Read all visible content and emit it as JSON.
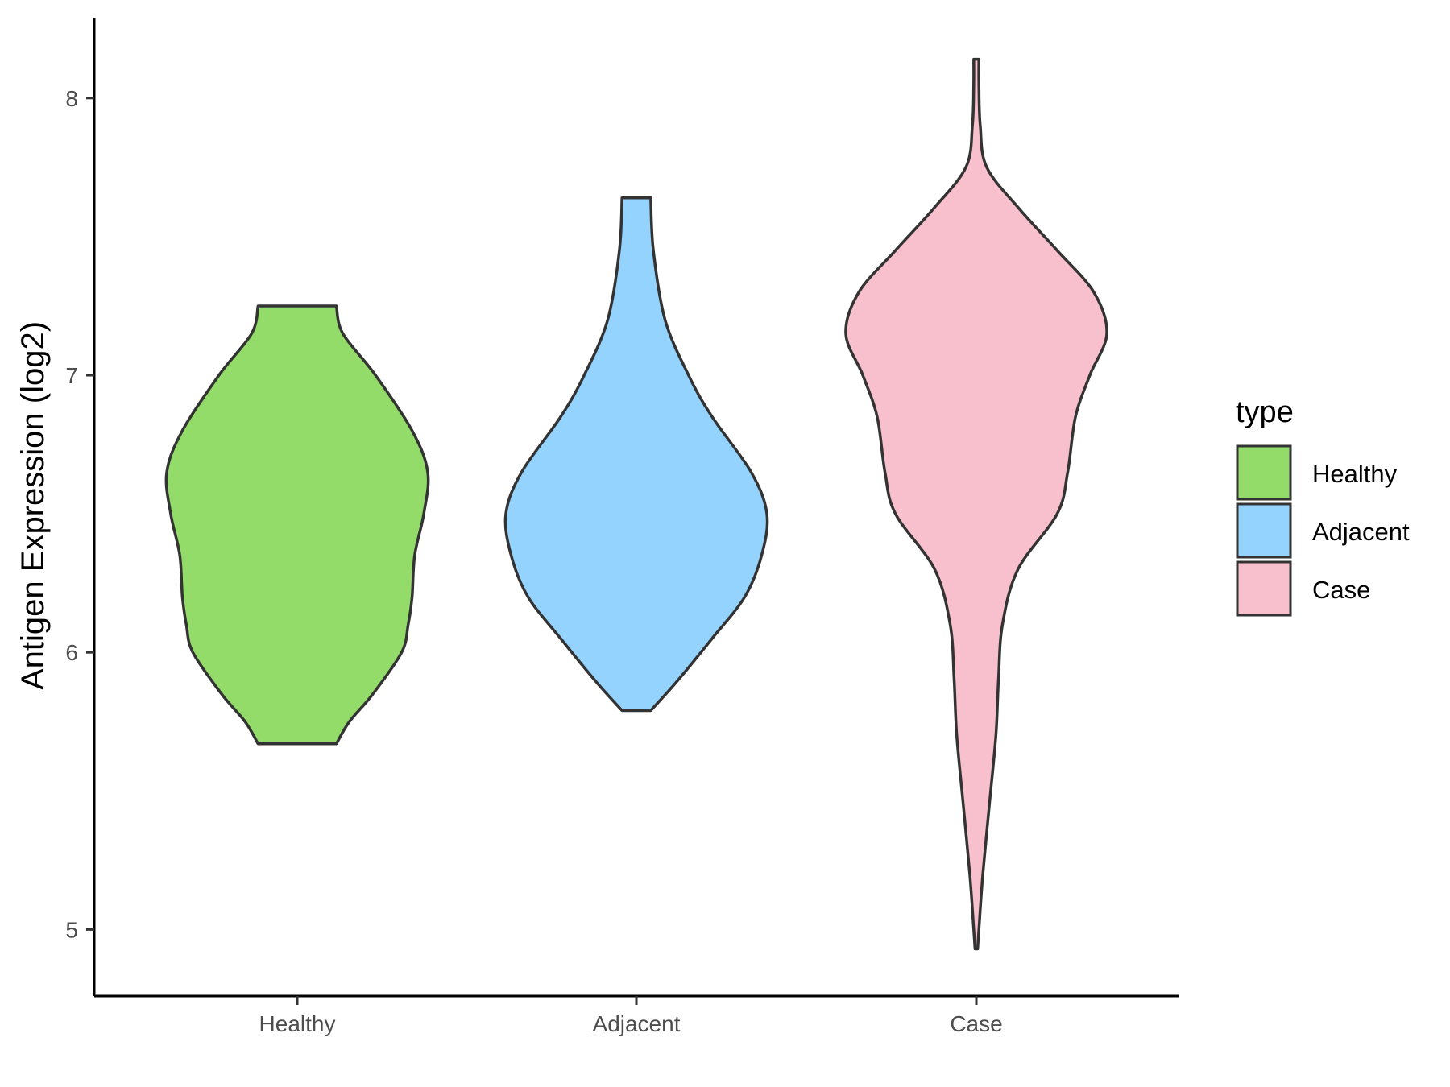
{
  "chart_data": {
    "type": "violin",
    "title": "",
    "xlabel": "",
    "ylabel": "Antigen Expression (log2)",
    "ylim": [
      4.76,
      8.29
    ],
    "yticks": [
      5,
      6,
      7,
      8
    ],
    "grid": false,
    "categories": [
      "Healthy",
      "Adjacent",
      "Case"
    ],
    "legend": {
      "title": "type",
      "placement": "right",
      "entries": [
        "Healthy",
        "Adjacent",
        "Case"
      ]
    },
    "series": [
      {
        "category": "Healthy",
        "color": "#93dc6a",
        "min": 5.67,
        "max": 7.25,
        "density": [
          [
            5.67,
            0.3
          ],
          [
            5.75,
            0.4
          ],
          [
            5.85,
            0.58
          ],
          [
            6.0,
            0.8
          ],
          [
            6.1,
            0.85
          ],
          [
            6.2,
            0.88
          ],
          [
            6.35,
            0.9
          ],
          [
            6.5,
            0.97
          ],
          [
            6.65,
            1.0
          ],
          [
            6.8,
            0.88
          ],
          [
            7.0,
            0.6
          ],
          [
            7.15,
            0.35
          ],
          [
            7.25,
            0.3
          ]
        ]
      },
      {
        "category": "Adjacent",
        "color": "#93d3fd",
        "min": 5.79,
        "max": 7.64,
        "density": [
          [
            5.79,
            0.11
          ],
          [
            5.9,
            0.32
          ],
          [
            6.05,
            0.58
          ],
          [
            6.2,
            0.83
          ],
          [
            6.35,
            0.96
          ],
          [
            6.5,
            1.0
          ],
          [
            6.65,
            0.88
          ],
          [
            6.85,
            0.58
          ],
          [
            7.0,
            0.4
          ],
          [
            7.2,
            0.22
          ],
          [
            7.45,
            0.13
          ],
          [
            7.64,
            0.11
          ]
        ]
      },
      {
        "category": "Case",
        "color": "#f8c0cd",
        "min": 4.93,
        "max": 8.14,
        "density": [
          [
            4.93,
            0.01
          ],
          [
            5.0,
            0.02
          ],
          [
            5.2,
            0.05
          ],
          [
            5.45,
            0.1
          ],
          [
            5.7,
            0.15
          ],
          [
            5.9,
            0.17
          ],
          [
            6.1,
            0.2
          ],
          [
            6.3,
            0.32
          ],
          [
            6.5,
            0.62
          ],
          [
            6.65,
            0.7
          ],
          [
            6.85,
            0.76
          ],
          [
            7.0,
            0.87
          ],
          [
            7.15,
            1.0
          ],
          [
            7.3,
            0.9
          ],
          [
            7.45,
            0.62
          ],
          [
            7.6,
            0.33
          ],
          [
            7.75,
            0.08
          ],
          [
            7.9,
            0.03
          ],
          [
            8.05,
            0.02
          ],
          [
            8.14,
            0.02
          ]
        ]
      }
    ]
  }
}
